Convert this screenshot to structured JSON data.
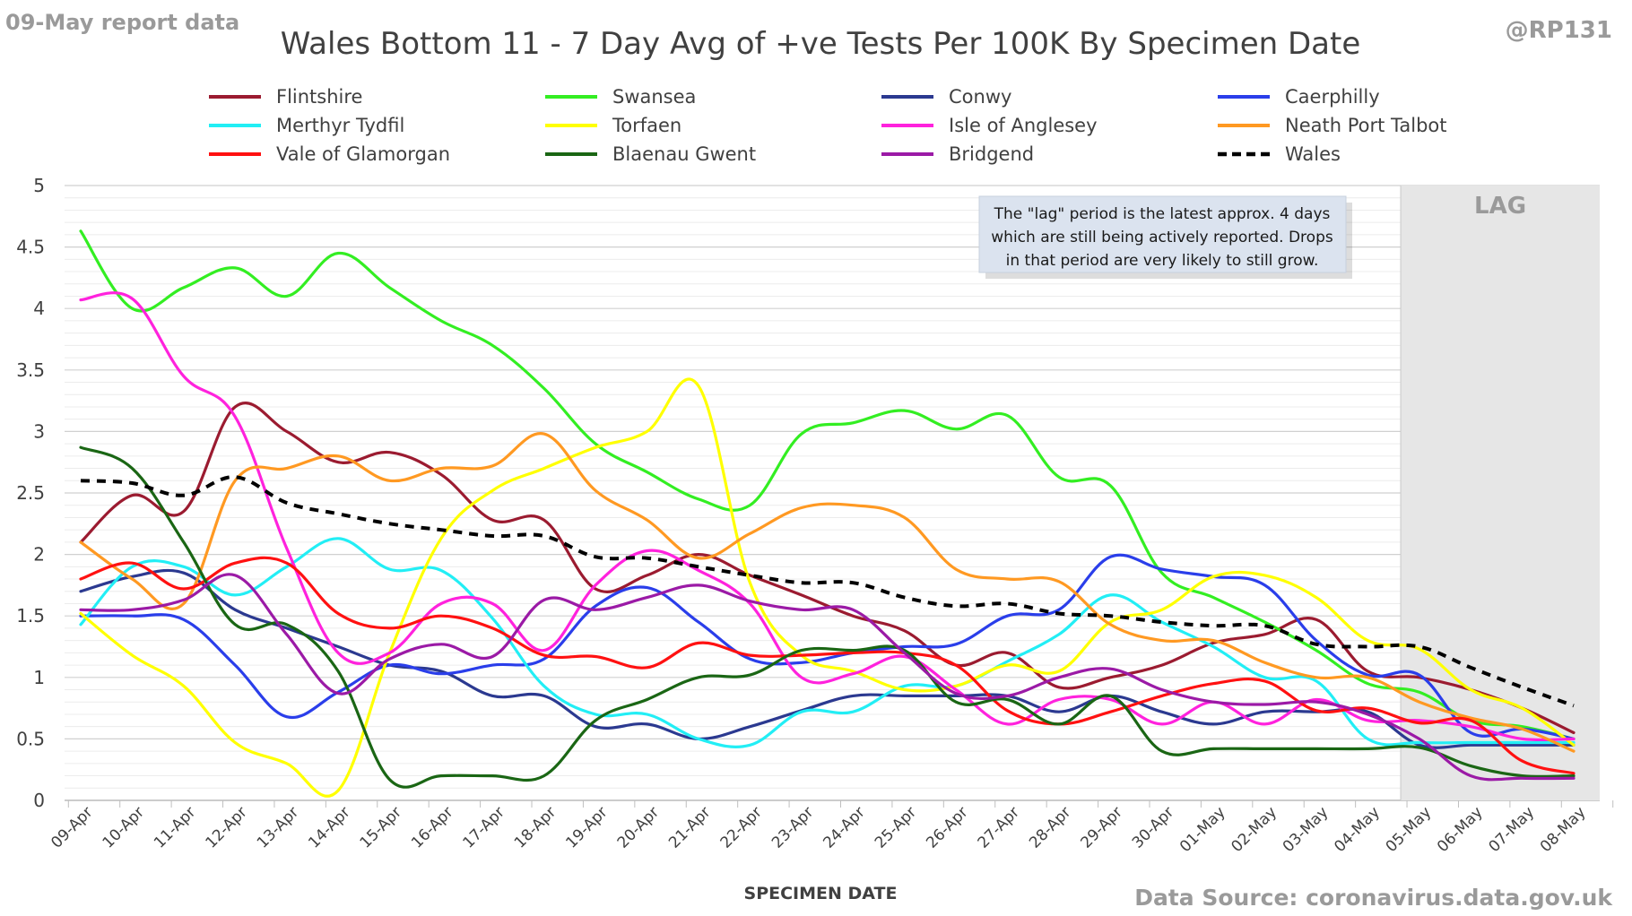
{
  "header": {
    "report_label": "09-May report data",
    "handle": "@RP131",
    "source": "Data Source: coronavirus.data.gov.uk"
  },
  "chart_data": {
    "type": "line",
    "title": "Wales Bottom 11 - 7 Day Avg of +ve Tests Per 100K By Specimen Date",
    "xlabel": "SPECIMEN DATE",
    "ylabel": "",
    "ylim": [
      0,
      5
    ],
    "yticks": [
      "0",
      "0.5",
      "1",
      "1.5",
      "2",
      "2.5",
      "3",
      "3.5",
      "4",
      "4.5",
      "5"
    ],
    "ytick_values": [
      0,
      0.5,
      1,
      1.5,
      2,
      2.5,
      3,
      3.5,
      4,
      4.5,
      5
    ],
    "grid": "horizontal",
    "legend_position": "top",
    "categories": [
      "09-Apr",
      "10-Apr",
      "11-Apr",
      "12-Apr",
      "13-Apr",
      "14-Apr",
      "15-Apr",
      "16-Apr",
      "17-Apr",
      "18-Apr",
      "19-Apr",
      "20-Apr",
      "21-Apr",
      "22-Apr",
      "23-Apr",
      "24-Apr",
      "25-Apr",
      "26-Apr",
      "27-Apr",
      "28-Apr",
      "29-Apr",
      "30-Apr",
      "01-May",
      "02-May",
      "03-May",
      "04-May",
      "05-May",
      "06-May",
      "07-May",
      "08-May"
    ],
    "lag": {
      "label": "LAG",
      "from": "05-May",
      "to": "08-May",
      "note": [
        "The \"lag\" period is the latest approx. 4 days",
        "which are still being actively reported.  Drops",
        "in that period are very likely to still grow."
      ]
    },
    "series": [
      {
        "name": "Flintshire",
        "color": "#9b1b30",
        "dash": false,
        "values": [
          2.1,
          2.48,
          2.35,
          3.2,
          3.0,
          2.75,
          2.83,
          2.65,
          2.28,
          2.28,
          1.72,
          1.83,
          2.0,
          1.83,
          1.67,
          1.5,
          1.38,
          1.1,
          1.2,
          0.92,
          1.0,
          1.1,
          1.28,
          1.35,
          1.47,
          1.05,
          1.0,
          0.9,
          0.75,
          0.55
        ]
      },
      {
        "name": "Swansea",
        "color": "#33ee22",
        "dash": false,
        "values": [
          4.63,
          4.0,
          4.17,
          4.33,
          4.1,
          4.45,
          4.17,
          3.9,
          3.7,
          3.35,
          2.9,
          2.67,
          2.45,
          2.4,
          2.98,
          3.07,
          3.17,
          3.02,
          3.13,
          2.63,
          2.56,
          1.85,
          1.65,
          1.45,
          1.22,
          0.95,
          0.88,
          0.65,
          0.6,
          0.5
        ]
      },
      {
        "name": "Conwy",
        "color": "#2b3990",
        "dash": false,
        "values": [
          1.7,
          1.82,
          1.85,
          1.55,
          1.4,
          1.25,
          1.1,
          1.05,
          0.85,
          0.85,
          0.6,
          0.62,
          0.5,
          0.6,
          0.73,
          0.85,
          0.85,
          0.85,
          0.85,
          0.72,
          0.85,
          0.72,
          0.62,
          0.72,
          0.72,
          0.72,
          0.45,
          0.45,
          0.45,
          0.45
        ]
      },
      {
        "name": "Caerphilly",
        "color": "#2a3eea",
        "dash": false,
        "values": [
          1.5,
          1.5,
          1.47,
          1.1,
          0.68,
          0.88,
          1.1,
          1.03,
          1.1,
          1.15,
          1.58,
          1.73,
          1.45,
          1.15,
          1.12,
          1.2,
          1.25,
          1.27,
          1.5,
          1.55,
          1.98,
          1.88,
          1.82,
          1.75,
          1.3,
          1.02,
          1.02,
          0.55,
          0.58,
          0.5
        ]
      },
      {
        "name": "Merthyr Tydfil",
        "color": "#22eef5",
        "dash": false,
        "values": [
          1.43,
          1.9,
          1.9,
          1.67,
          1.9,
          2.13,
          1.88,
          1.87,
          1.48,
          0.93,
          0.7,
          0.7,
          0.5,
          0.45,
          0.72,
          0.72,
          0.93,
          0.93,
          1.13,
          1.35,
          1.67,
          1.45,
          1.25,
          1.0,
          0.97,
          0.5,
          0.47,
          0.47,
          0.47,
          0.47
        ]
      },
      {
        "name": "Torfaen",
        "color": "#ffff00",
        "dash": false,
        "values": [
          1.52,
          1.18,
          0.93,
          0.47,
          0.3,
          0.08,
          1.2,
          2.13,
          2.52,
          2.7,
          2.87,
          3.0,
          3.37,
          1.77,
          1.18,
          1.05,
          0.9,
          0.93,
          1.1,
          1.05,
          1.45,
          1.55,
          1.82,
          1.83,
          1.65,
          1.3,
          1.23,
          0.9,
          0.75,
          0.45
        ]
      },
      {
        "name": "Isle of Anglesey",
        "color": "#ff22dd",
        "dash": false,
        "values": [
          4.07,
          4.08,
          3.45,
          3.12,
          2.05,
          1.2,
          1.2,
          1.6,
          1.6,
          1.22,
          1.75,
          2.03,
          1.87,
          1.6,
          1.0,
          1.03,
          1.17,
          0.9,
          0.62,
          0.82,
          0.82,
          0.62,
          0.8,
          0.62,
          0.82,
          0.65,
          0.65,
          0.6,
          0.5,
          0.5
        ]
      },
      {
        "name": "Neath Port Talbot",
        "color": "#ff9922",
        "dash": false,
        "values": [
          2.1,
          1.8,
          1.6,
          2.6,
          2.7,
          2.8,
          2.6,
          2.7,
          2.72,
          2.98,
          2.52,
          2.28,
          1.97,
          2.17,
          2.38,
          2.4,
          2.3,
          1.88,
          1.8,
          1.78,
          1.43,
          1.3,
          1.3,
          1.12,
          1.0,
          1.0,
          0.8,
          0.67,
          0.58,
          0.4
        ]
      },
      {
        "name": "Vale of Glamorgan",
        "color": "#ff1111",
        "dash": false,
        "values": [
          1.8,
          1.93,
          1.72,
          1.93,
          1.93,
          1.52,
          1.4,
          1.5,
          1.4,
          1.18,
          1.17,
          1.08,
          1.28,
          1.18,
          1.18,
          1.2,
          1.2,
          1.1,
          0.73,
          0.62,
          0.72,
          0.85,
          0.95,
          0.97,
          0.73,
          0.75,
          0.63,
          0.65,
          0.32,
          0.22
        ]
      },
      {
        "name": "Blaenau Gwent",
        "color": "#1a6614",
        "dash": false,
        "values": [
          2.87,
          2.7,
          2.1,
          1.43,
          1.43,
          1.05,
          0.17,
          0.2,
          0.2,
          0.2,
          0.65,
          0.82,
          1.0,
          1.02,
          1.22,
          1.22,
          1.22,
          0.8,
          0.82,
          0.62,
          0.85,
          0.4,
          0.42,
          0.42,
          0.42,
          0.42,
          0.43,
          0.28,
          0.2,
          0.2
        ]
      },
      {
        "name": "Bridgend",
        "color": "#9b1aa6",
        "dash": false,
        "values": [
          1.55,
          1.55,
          1.63,
          1.83,
          1.35,
          0.87,
          1.15,
          1.27,
          1.17,
          1.63,
          1.55,
          1.65,
          1.75,
          1.62,
          1.55,
          1.55,
          1.2,
          0.87,
          0.85,
          1.0,
          1.07,
          0.9,
          0.8,
          0.78,
          0.8,
          0.7,
          0.5,
          0.2,
          0.18,
          0.18
        ]
      },
      {
        "name": "Wales",
        "color": "#000000",
        "dash": true,
        "values": [
          2.6,
          2.58,
          2.48,
          2.63,
          2.42,
          2.33,
          2.25,
          2.2,
          2.15,
          2.15,
          1.98,
          1.97,
          1.9,
          1.83,
          1.77,
          1.77,
          1.65,
          1.58,
          1.6,
          1.52,
          1.5,
          1.45,
          1.42,
          1.42,
          1.27,
          1.25,
          1.25,
          1.08,
          0.92,
          0.77
        ]
      }
    ]
  }
}
